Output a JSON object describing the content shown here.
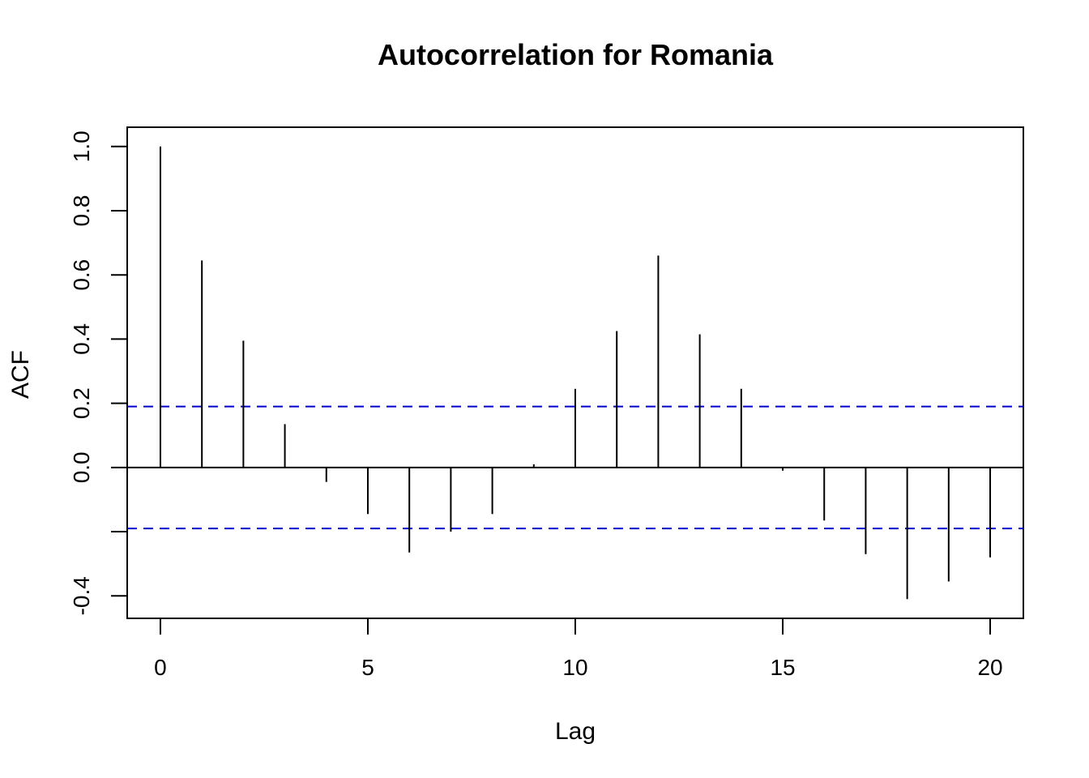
{
  "chart_data": {
    "type": "bar",
    "title": "Autocorrelation for Romania",
    "xlabel": "Lag",
    "ylabel": "ACF",
    "xlim": [
      -0.8,
      20.8
    ],
    "ylim": [
      -0.47,
      1.06
    ],
    "x_ticks": [
      0,
      5,
      10,
      15,
      20
    ],
    "y_ticks": [
      -0.4,
      -0.2,
      0.0,
      0.2,
      0.4,
      0.6,
      0.8,
      1.0
    ],
    "y_tick_labels": [
      "-0.4",
      "",
      "0.0",
      "0.2",
      "0.4",
      "0.6",
      "0.8",
      "1.0"
    ],
    "lags": [
      0,
      1,
      2,
      3,
      4,
      5,
      6,
      7,
      8,
      9,
      10,
      11,
      12,
      13,
      14,
      15,
      16,
      17,
      18,
      19,
      20
    ],
    "values": [
      1.0,
      0.645,
      0.395,
      0.135,
      -0.045,
      -0.145,
      -0.265,
      -0.2,
      -0.145,
      0.01,
      0.245,
      0.425,
      0.66,
      0.415,
      0.245,
      -0.01,
      -0.165,
      -0.27,
      -0.41,
      -0.355,
      -0.28
    ],
    "confidence_bound": 0.19,
    "bar_color": "#000000",
    "ci_color": "#0000cc",
    "zero_line": true,
    "grid": false
  }
}
